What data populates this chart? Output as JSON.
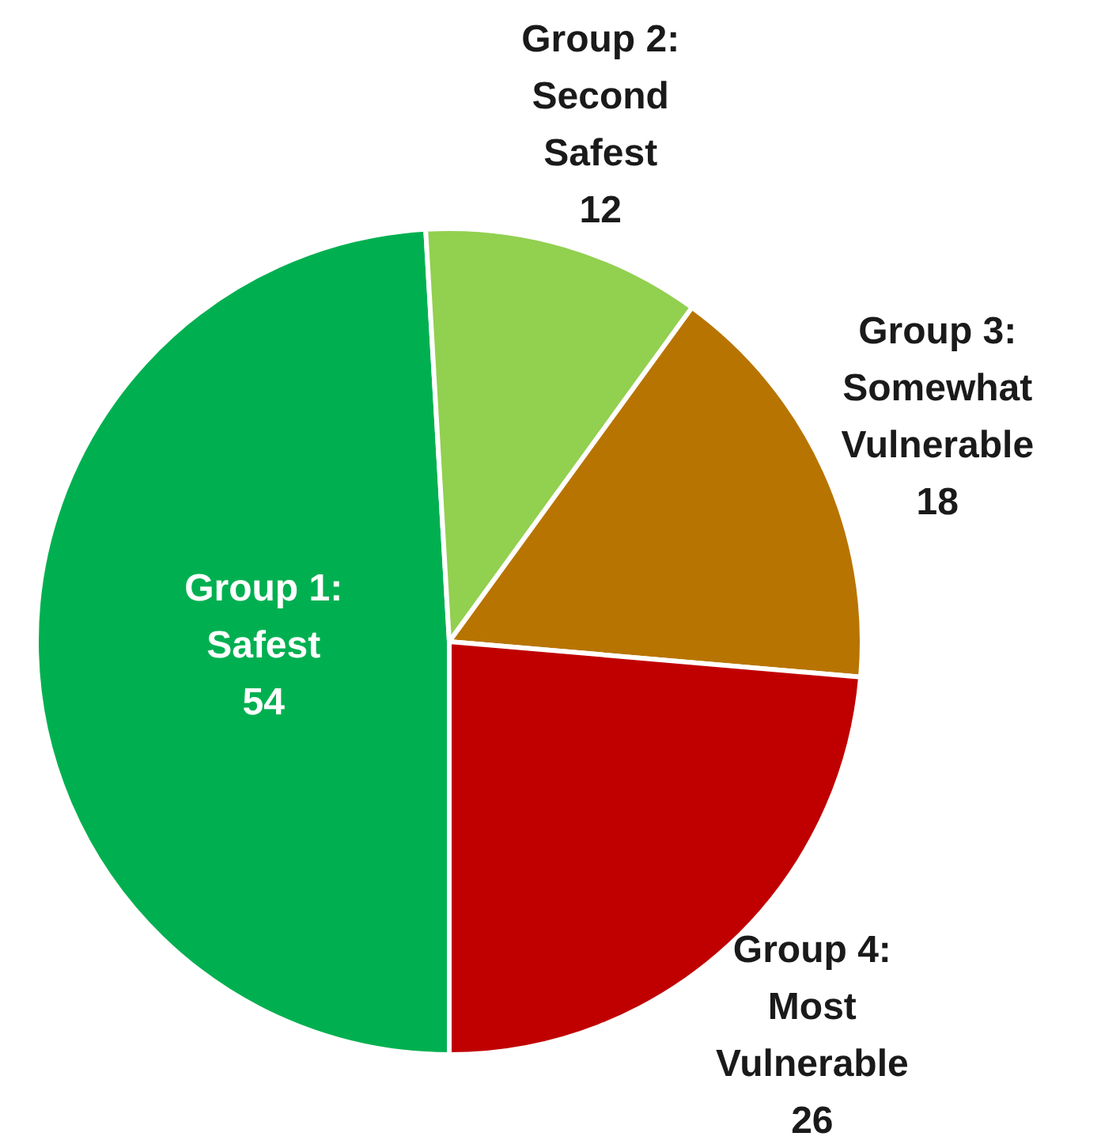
{
  "chart_data": {
    "type": "pie",
    "categories": [
      "Group 1: Safest",
      "Group 2: Second Safest",
      "Group 3: Somewhat Vulnerable",
      "Group 4: Most Vulnerable"
    ],
    "values": [
      54,
      12,
      18,
      26
    ],
    "colors": [
      "#00b050",
      "#92d050",
      "#b87400",
      "#c00000"
    ],
    "data_labels": true,
    "legend": false
  }
}
